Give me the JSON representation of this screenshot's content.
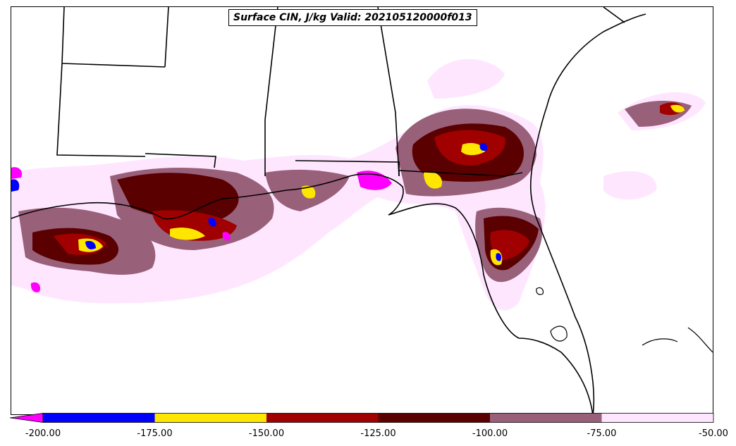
{
  "title": "Surface CIN, J/kg Valid: 202105120000f013",
  "colorbar": {
    "extend": "min",
    "ticks": [
      "-200.00",
      "-175.00",
      "-150.00",
      "-125.00",
      "-100.00",
      "-75.00",
      "-50.00"
    ],
    "bins": [
      {
        "from": -200,
        "to": -175,
        "color": "#0000ff"
      },
      {
        "from": -175,
        "to": -150,
        "color": "#ffe600"
      },
      {
        "from": -150,
        "to": -125,
        "color": "#a10000"
      },
      {
        "from": -125,
        "to": -100,
        "color": "#5a0000"
      },
      {
        "from": -100,
        "to": -75,
        "color": "#99607a"
      },
      {
        "from": -75,
        "to": -50,
        "color": "#ffe6ff"
      }
    ],
    "under_color": "#ff00ff"
  },
  "map": {
    "region": "Southeastern United States and Gulf of Mexico",
    "background": "#ffffff",
    "border_color": "#000000"
  }
}
